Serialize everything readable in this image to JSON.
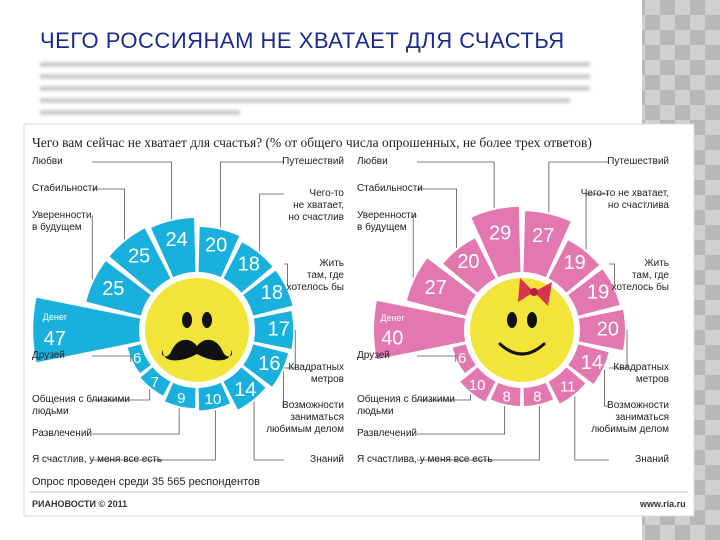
{
  "slide_title": "ЧЕГО РОССИЯНАМ НЕ ХВАТАЕТ ДЛЯ СЧАСТЬЯ",
  "infographic_title": "Чего вам сейчас не хватает для счастья? (% от общего числа опрошенных, не более трех ответов)",
  "chart_data": [
    {
      "type": "radial-bar",
      "color": "#1ab0dd",
      "face": "mustache",
      "categories": [
        "Денег",
        "Уверенности\nв будущем",
        "Стабильности",
        "Любви",
        "Путешествий",
        "Чего-то\nне хватает,\nно счастлив",
        "Жить\nтам, где\nхотелось бы",
        "Квадратных\nметров",
        "Возможности\nзаниматься\nлюбимым делом",
        "Знаний",
        "Я счастлив, у меня все есть",
        "Развлечений",
        "Общения с близкими\nлюдьми",
        "Друзей"
      ],
      "values": [
        47,
        25,
        25,
        24,
        20,
        18,
        18,
        17,
        16,
        14,
        10,
        9,
        7,
        6
      ]
    },
    {
      "type": "radial-bar",
      "color": "#e377b0",
      "face": "bow",
      "categories": [
        "Денег",
        "Уверенности\nв будущем",
        "Стабильности",
        "Любви",
        "Путешествий",
        "Чего-то не хватает,\nно счастлива",
        "Жить\nтам, где\nхотелось бы",
        "Квадратных\nметров",
        "Возможности\nзаниматься\nлюбимым делом",
        "Знаний",
        "Я счастлива, у меня все есть",
        "Развлечений",
        "Общения с близкими\nлюдьми",
        "Друзей"
      ],
      "values": [
        40,
        27,
        20,
        29,
        27,
        19,
        19,
        20,
        14,
        11,
        8,
        8,
        10,
        6
      ]
    }
  ],
  "footer": {
    "survey": "Опрос проведен среди 35 565 респондентов",
    "credit": "РИАНОВОСТИ © 2011",
    "site": "www.ria.ru"
  }
}
